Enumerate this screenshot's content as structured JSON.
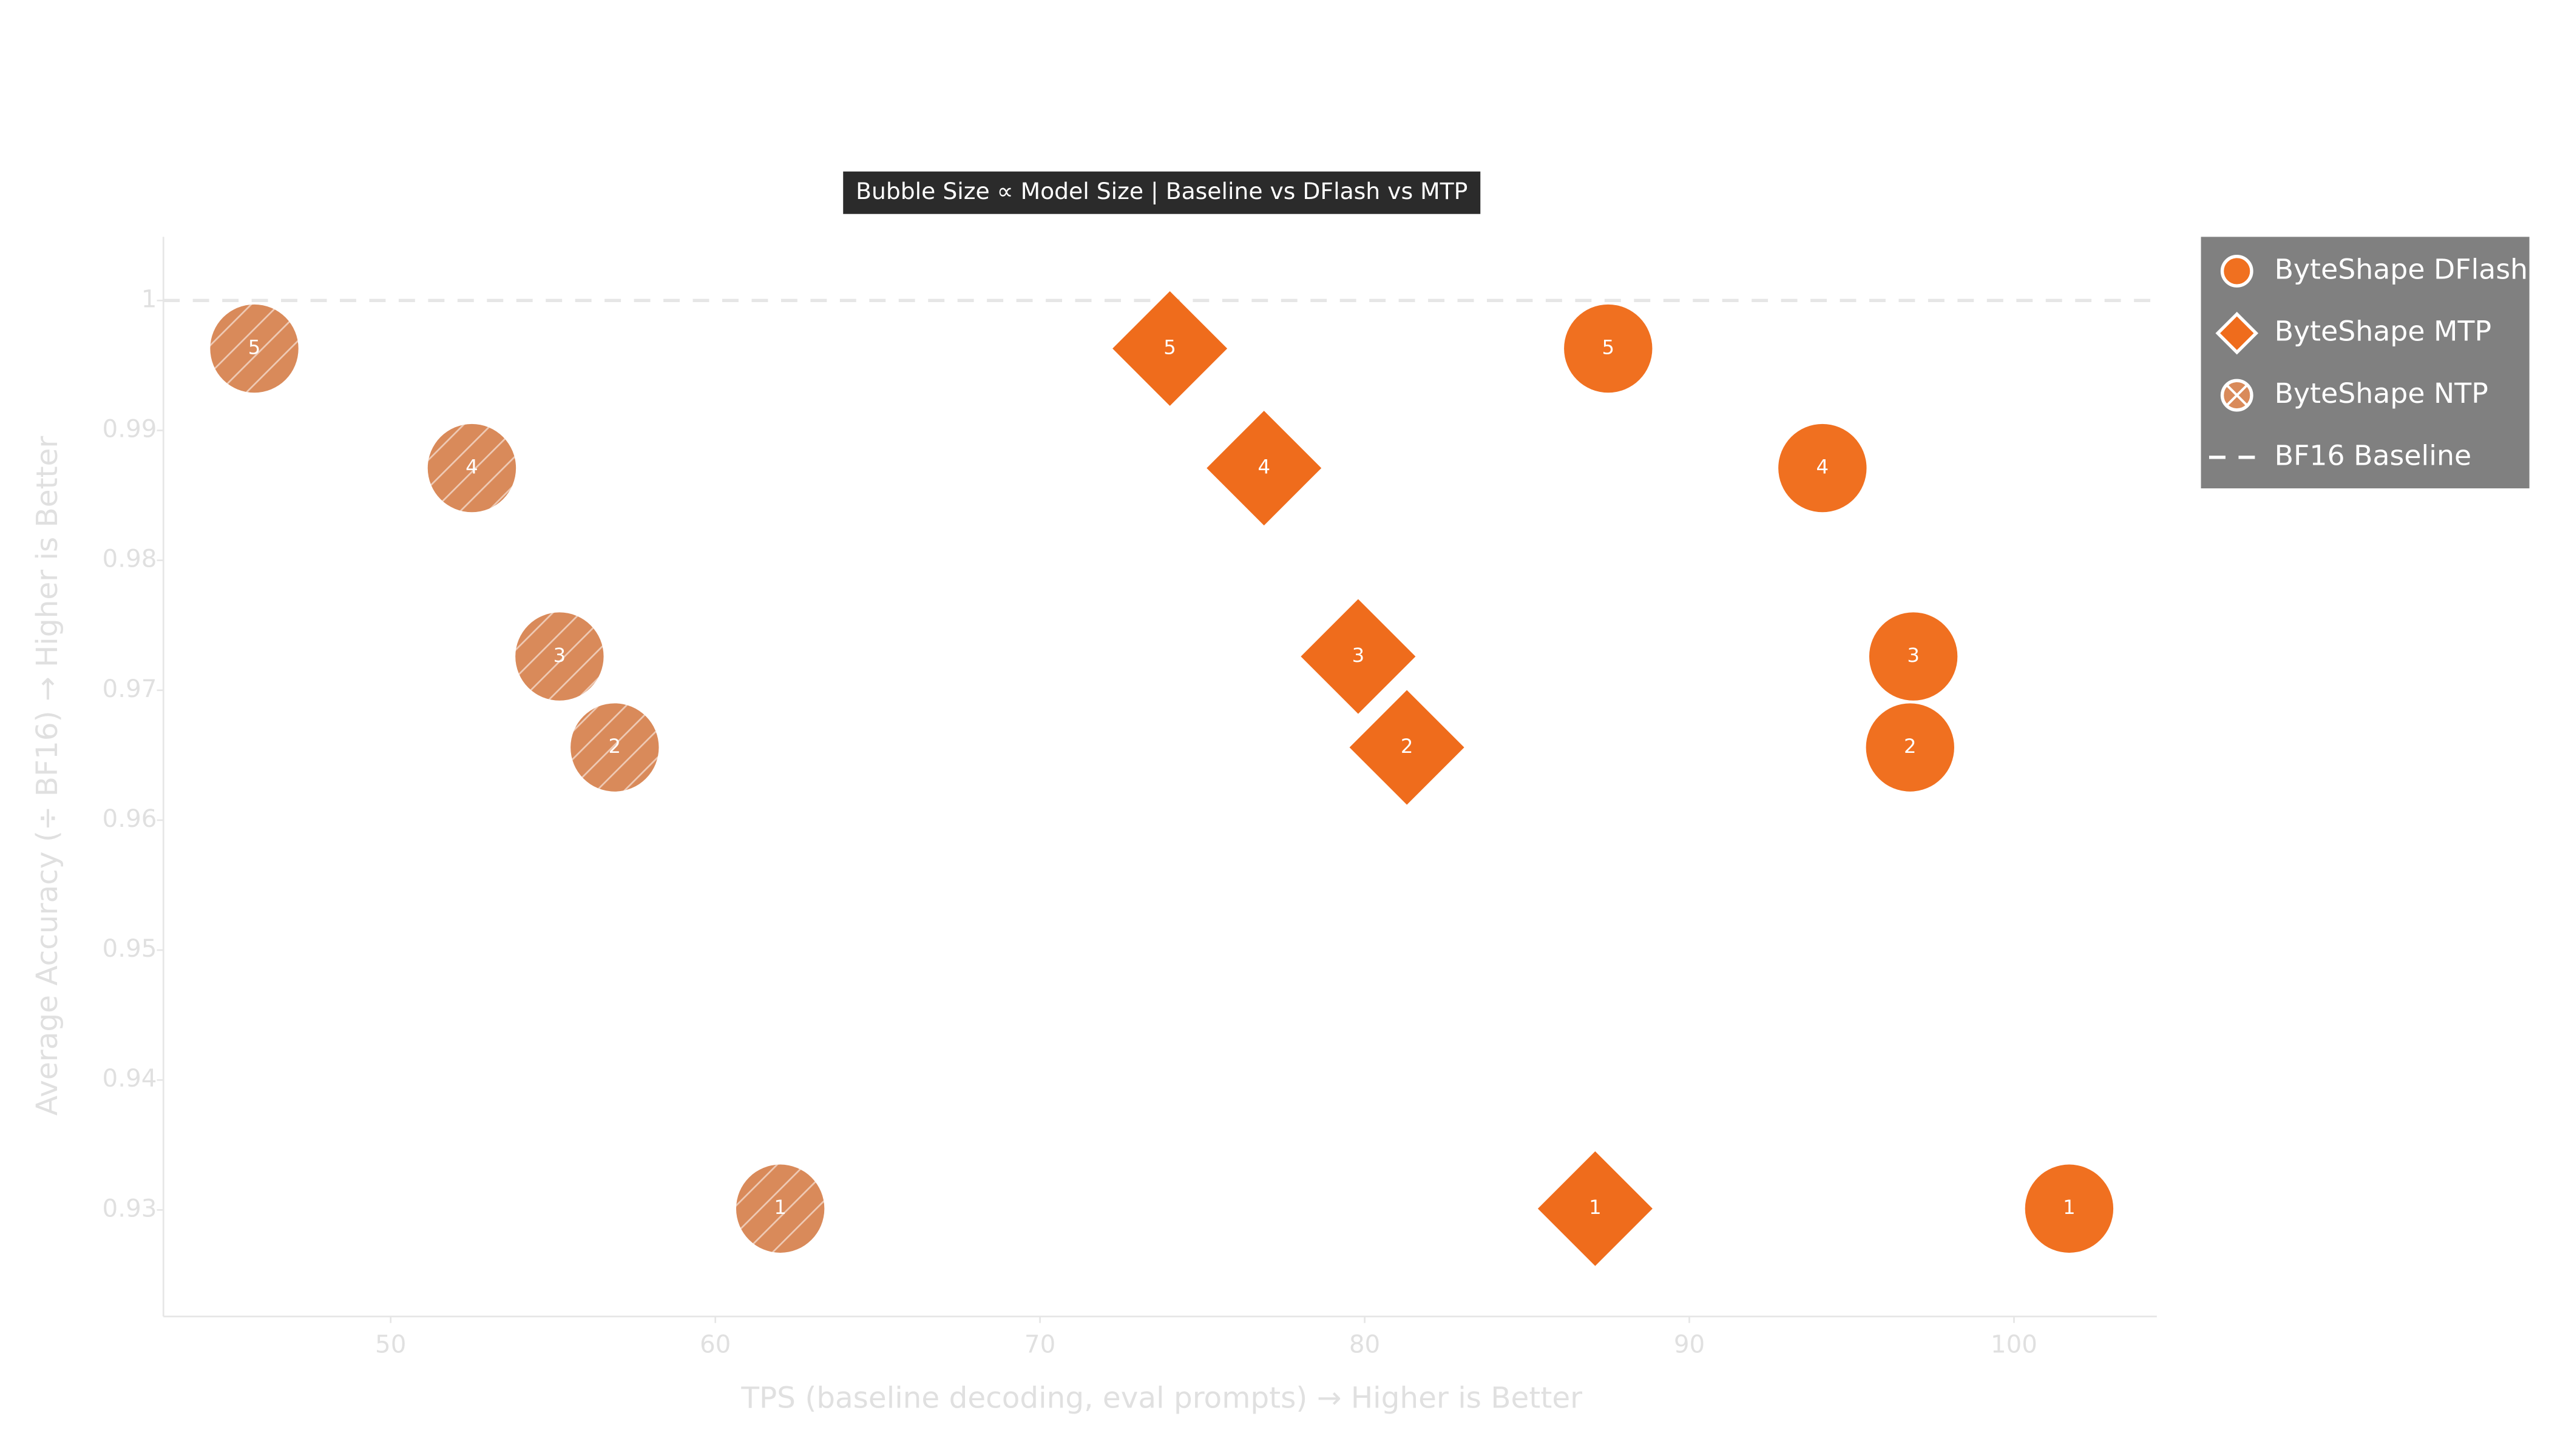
{
  "chart_data": {
    "type": "scatter",
    "title": "Bubble Size ∝ Model Size | Baseline vs DFlash vs MTP",
    "x_label": "TPS (baseline decoding, eval prompts) → Higher is Better",
    "y_label": "Average Accuracy (÷ BF16) → Higher is Better",
    "xlim": [
      43,
      104.4
    ],
    "ylim": [
      0.9218,
      1.0049
    ],
    "xticks": [
      50,
      60,
      70,
      80,
      90,
      100
    ],
    "yticks": [
      0.93,
      0.94,
      0.95,
      0.96,
      0.97,
      0.98,
      0.99,
      1
    ],
    "baseline": {
      "name": "BF16 Baseline",
      "value": 1,
      "color": "#e6e6e6"
    },
    "legend": "right",
    "series": [
      {
        "name": "ByteShape DFlash",
        "color": "#f07020",
        "marker": "circle",
        "hatch": false,
        "x": [
          87.5,
          94.1,
          96.9,
          96.8,
          101.7
        ],
        "values": [
          0.9963,
          0.9871,
          0.9726,
          0.9656,
          0.9301
        ],
        "labels": [
          "5",
          "4",
          "3",
          "2",
          "1"
        ]
      },
      {
        "name": "ByteShape MTP",
        "color": "#ef6c1c",
        "marker": "diamond",
        "hatch": false,
        "x": [
          74.0,
          76.9,
          79.8,
          81.3,
          87.1
        ],
        "values": [
          0.9963,
          0.9871,
          0.9726,
          0.9656,
          0.9301
        ],
        "labels": [
          "5",
          "4",
          "3",
          "2",
          "1"
        ]
      },
      {
        "name": "ByteShape NTP",
        "color": "#d98a5a",
        "marker": "circle",
        "hatch": true,
        "x": [
          45.8,
          52.5,
          55.2,
          56.9,
          62.0
        ],
        "values": [
          0.9963,
          0.9871,
          0.9726,
          0.9656,
          0.9301
        ],
        "labels": [
          "5",
          "4",
          "3",
          "2",
          "1"
        ]
      }
    ]
  }
}
